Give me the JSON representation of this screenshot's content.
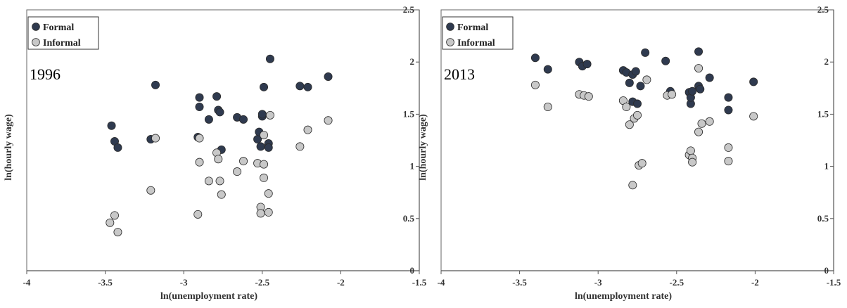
{
  "chart_data": [
    {
      "type": "scatter",
      "annotation": "1996",
      "xlabel": "ln(unemployment rate)",
      "ylabel": "ln(hourly wage)",
      "xlim": [
        -4,
        -1.5
      ],
      "ylim": [
        0,
        2.5
      ],
      "x_ticks": [
        "-4",
        "-3.5",
        "-3",
        "-2.5",
        "-2",
        "-1.5"
      ],
      "y_ticks": [
        "0",
        "0.5",
        "1",
        "1.5",
        "2",
        "2.5"
      ],
      "legend_position": "top-left",
      "series": [
        {
          "name": "Formal",
          "color": "#2f3a4f",
          "points": [
            [
              -3.46,
              1.39
            ],
            [
              -3.44,
              1.24
            ],
            [
              -3.42,
              1.18
            ],
            [
              -3.21,
              1.26
            ],
            [
              -3.18,
              1.78
            ],
            [
              -2.91,
              1.28
            ],
            [
              -2.9,
              1.66
            ],
            [
              -2.9,
              1.57
            ],
            [
              -2.84,
              1.45
            ],
            [
              -2.79,
              1.67
            ],
            [
              -2.78,
              1.54
            ],
            [
              -2.77,
              1.52
            ],
            [
              -2.76,
              1.16
            ],
            [
              -2.66,
              1.47
            ],
            [
              -2.62,
              1.45
            ],
            [
              -2.53,
              1.26
            ],
            [
              -2.52,
              1.33
            ],
            [
              -2.51,
              1.19
            ],
            [
              -2.5,
              1.48
            ],
            [
              -2.5,
              1.5
            ],
            [
              -2.49,
              1.76
            ],
            [
              -2.46,
              1.22
            ],
            [
              -2.46,
              1.18
            ],
            [
              -2.45,
              2.03
            ],
            [
              -2.26,
              1.77
            ],
            [
              -2.21,
              1.76
            ],
            [
              -2.08,
              1.86
            ]
          ]
        },
        {
          "name": "Informal",
          "color": "#c8c8c8",
          "points": [
            [
              -3.47,
              0.46
            ],
            [
              -3.44,
              0.53
            ],
            [
              -3.42,
              0.37
            ],
            [
              -3.21,
              0.77
            ],
            [
              -3.18,
              1.27
            ],
            [
              -2.91,
              0.54
            ],
            [
              -2.9,
              1.04
            ],
            [
              -2.9,
              1.27
            ],
            [
              -2.84,
              0.86
            ],
            [
              -2.79,
              1.13
            ],
            [
              -2.78,
              1.07
            ],
            [
              -2.77,
              0.86
            ],
            [
              -2.76,
              0.73
            ],
            [
              -2.66,
              0.95
            ],
            [
              -2.62,
              1.05
            ],
            [
              -2.53,
              1.03
            ],
            [
              -2.51,
              0.61
            ],
            [
              -2.51,
              0.55
            ],
            [
              -2.49,
              1.02
            ],
            [
              -2.49,
              0.89
            ],
            [
              -2.49,
              1.3
            ],
            [
              -2.46,
              0.74
            ],
            [
              -2.46,
              0.56
            ],
            [
              -2.45,
              1.49
            ],
            [
              -2.26,
              1.19
            ],
            [
              -2.21,
              1.35
            ],
            [
              -2.08,
              1.44
            ]
          ]
        }
      ]
    },
    {
      "type": "scatter",
      "annotation": "2013",
      "xlabel": "ln(unemployment rate)",
      "ylabel": "ln(hourly wage)",
      "xlim": [
        -4,
        -1.5
      ],
      "ylim": [
        0,
        2.5
      ],
      "x_ticks": [
        "-4",
        "-3.5",
        "-3",
        "-2.5",
        "-2",
        "-1.5"
      ],
      "y_ticks": [
        "0",
        "0.5",
        "1",
        "1.5",
        "2",
        "2.5"
      ],
      "legend_position": "top-left",
      "series": [
        {
          "name": "Formal",
          "color": "#2f3a4f",
          "points": [
            [
              -3.4,
              2.04
            ],
            [
              -3.32,
              1.93
            ],
            [
              -3.12,
              2.0
            ],
            [
              -3.1,
              1.96
            ],
            [
              -3.07,
              1.98
            ],
            [
              -2.84,
              1.92
            ],
            [
              -2.82,
              1.9
            ],
            [
              -2.8,
              1.8
            ],
            [
              -2.78,
              1.88
            ],
            [
              -2.78,
              1.62
            ],
            [
              -2.76,
              1.91
            ],
            [
              -2.75,
              1.6
            ],
            [
              -2.73,
              1.77
            ],
            [
              -2.7,
              2.09
            ],
            [
              -2.57,
              2.01
            ],
            [
              -2.54,
              1.72
            ],
            [
              -2.42,
              1.71
            ],
            [
              -2.41,
              1.6
            ],
            [
              -2.41,
              1.66
            ],
            [
              -2.4,
              1.72
            ],
            [
              -2.36,
              2.1
            ],
            [
              -2.36,
              1.77
            ],
            [
              -2.35,
              1.74
            ],
            [
              -2.29,
              1.85
            ],
            [
              -2.17,
              1.66
            ],
            [
              -2.17,
              1.54
            ],
            [
              -2.01,
              1.81
            ]
          ]
        },
        {
          "name": "Informal",
          "color": "#c8c8c8",
          "points": [
            [
              -3.4,
              1.78
            ],
            [
              -3.32,
              1.57
            ],
            [
              -3.12,
              1.69
            ],
            [
              -3.09,
              1.68
            ],
            [
              -3.06,
              1.67
            ],
            [
              -2.84,
              1.63
            ],
            [
              -2.82,
              1.57
            ],
            [
              -2.8,
              1.4
            ],
            [
              -2.78,
              0.82
            ],
            [
              -2.77,
              1.46
            ],
            [
              -2.75,
              1.49
            ],
            [
              -2.74,
              1.01
            ],
            [
              -2.72,
              1.03
            ],
            [
              -2.69,
              1.83
            ],
            [
              -2.56,
              1.68
            ],
            [
              -2.53,
              1.69
            ],
            [
              -2.42,
              1.11
            ],
            [
              -2.41,
              1.15
            ],
            [
              -2.4,
              1.08
            ],
            [
              -2.4,
              1.04
            ],
            [
              -2.36,
              1.94
            ],
            [
              -2.36,
              1.33
            ],
            [
              -2.34,
              1.41
            ],
            [
              -2.29,
              1.43
            ],
            [
              -2.17,
              1.18
            ],
            [
              -2.17,
              1.05
            ],
            [
              -2.01,
              1.48
            ]
          ]
        }
      ]
    }
  ]
}
